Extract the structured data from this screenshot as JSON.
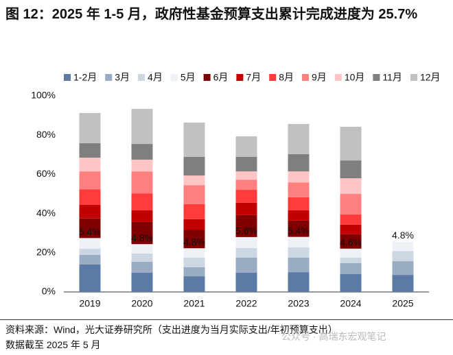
{
  "chart_data": {
    "type": "stacked_bar",
    "title": "图 12：2025 年 1-5 月，政府性基金预算支出累计完成进度为 25.7%",
    "categories": [
      "2019",
      "2020",
      "2021",
      "2022",
      "2023",
      "2024",
      "2025"
    ],
    "series": [
      {
        "name": "1-2月",
        "color": "#5b7ba6",
        "values": [
          14.0,
          9.8,
          8.0,
          9.8,
          10.1,
          9.1,
          8.7
        ]
      },
      {
        "name": "3月",
        "color": "#9aabc4",
        "values": [
          4.9,
          5.6,
          4.6,
          7.7,
          7.4,
          5.6,
          7.0
        ]
      },
      {
        "name": "4月",
        "color": "#cdd6e3",
        "values": [
          3.2,
          4.2,
          4.9,
          4.9,
          5.2,
          2.8,
          5.2
        ]
      },
      {
        "name": "5月",
        "color": "#eef1f6",
        "values": [
          5.4,
          4.8,
          4.8,
          5.6,
          5.4,
          4.6,
          4.8
        ],
        "value_labels": [
          "5.4%",
          "4.8%",
          "4.8%",
          "5.6%",
          "5.4%",
          "4.6%",
          "4.8%"
        ]
      },
      {
        "name": "6月",
        "color": "#7f0000",
        "values": [
          10.0,
          11.3,
          9.5,
          11.2,
          8.3,
          7.3,
          null
        ]
      },
      {
        "name": "7月",
        "color": "#c00000",
        "values": [
          6.9,
          5.9,
          5.3,
          6.3,
          5.2,
          4.9,
          null
        ]
      },
      {
        "name": "8月",
        "color": "#ff3b3b",
        "values": [
          8.0,
          8.7,
          7.7,
          6.6,
          6.7,
          5.2,
          null
        ]
      },
      {
        "name": "9月",
        "color": "#ff8080",
        "values": [
          9.1,
          11.2,
          9.7,
          5.2,
          7.6,
          10.5,
          null
        ]
      },
      {
        "name": "10月",
        "color": "#ffc4c4",
        "values": [
          7.0,
          6.0,
          4.9,
          4.2,
          5.6,
          8.0,
          null
        ]
      },
      {
        "name": "11月",
        "color": "#7f7f7f",
        "values": [
          7.4,
          8.0,
          9.5,
          7.4,
          8.8,
          9.1,
          null
        ]
      },
      {
        "name": "12月",
        "color": "#c0c0c0",
        "values": [
          15.4,
          17.9,
          17.5,
          10.5,
          15.4,
          17.2,
          null
        ]
      }
    ],
    "ylim": [
      0,
      100
    ],
    "yticks": [
      {
        "value": 0,
        "label": "0%"
      },
      {
        "value": 20,
        "label": "20%"
      },
      {
        "value": 40,
        "label": "40%"
      },
      {
        "value": 60,
        "label": "60%"
      },
      {
        "value": 80,
        "label": "80%"
      },
      {
        "value": 100,
        "label": "100%"
      }
    ],
    "grid": false,
    "source": "资料来源：Wind，光大证券研究所（支出进度为当月实际支出/年初预算支出）",
    "note": "数据截至 2025 年 5 月",
    "watermark": "公众号 · 高瑞东宏观笔记"
  }
}
